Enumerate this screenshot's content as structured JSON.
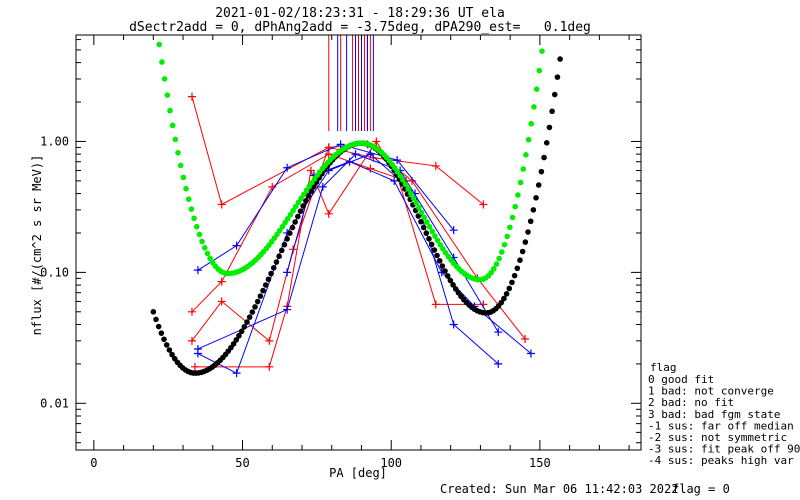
{
  "chart_data": {
    "type": "scatter",
    "title": "2021-01-02/18:23:31 - 18:29:36 UT ela",
    "subtitle": "dSectr2add = 0, dPhAng2add = -3.75deg, dPA290_est=   0.1deg",
    "xlabel": "PA [deg]",
    "ylabel": "nflux [#/(cm^2 s sr MeV)]",
    "xlim": [
      -6,
      184
    ],
    "ylim": [
      0.0044,
      6.5
    ],
    "yscale": "log",
    "x_ticks": [
      0,
      50,
      100,
      150
    ],
    "x_tick_labels": [
      "0",
      "50",
      "100",
      "150"
    ],
    "y_ticks": [
      0.01,
      0.1,
      1.0
    ],
    "y_tick_labels": [
      "0.01",
      "0.10",
      "1.00"
    ],
    "grid": false,
    "legend_position": "right",
    "legend": {
      "title": "flag",
      "entries": [
        " 0 good fit",
        " 1 bad: not converge",
        " 2 bad: no fit",
        " 3 bad: bad fgm state",
        "-1 sus: far off median",
        "-2 sus: not symmetric",
        "-3 sus: fit peak off 90",
        "-4 sus: peaks high var"
      ]
    },
    "vertical_lines": [
      {
        "color": "#ff0000",
        "x": [
          79,
          83,
          87,
          89,
          91,
          92,
          93
        ]
      },
      {
        "color": "#0000ff",
        "x": [
          82,
          85,
          88,
          90,
          92,
          94
        ]
      }
    ],
    "series": [
      {
        "color": "#ff0000",
        "points": [
          [
            33,
            2.2
          ],
          [
            43,
            0.33
          ],
          [
            79,
            0.9
          ],
          [
            94,
            0.75
          ],
          [
            115,
            0.65
          ],
          [
            131,
            0.33
          ]
        ]
      },
      {
        "color": "#ff0000",
        "points": [
          [
            33,
            0.05
          ],
          [
            43,
            0.085
          ],
          [
            60,
            0.45
          ],
          [
            79,
            0.8
          ],
          [
            93,
            0.62
          ],
          [
            105,
            0.5
          ]
        ]
      },
      {
        "color": "#ff0000",
        "points": [
          [
            33,
            0.03
          ],
          [
            43,
            0.06
          ],
          [
            59,
            0.03
          ],
          [
            67,
            0.15
          ],
          [
            79,
            0.9
          ],
          [
            92,
            0.95
          ],
          [
            107,
            0.5
          ],
          [
            129,
            0.09
          ],
          [
            145,
            0.031
          ]
        ]
      },
      {
        "color": "#ff0000",
        "points": [
          [
            34,
            0.019
          ],
          [
            59,
            0.019
          ],
          [
            65,
            0.055
          ],
          [
            73,
            0.6
          ],
          [
            79,
            0.28
          ],
          [
            95,
            1.0
          ],
          [
            102,
            0.55
          ],
          [
            115,
            0.057
          ],
          [
            131,
            0.057
          ]
        ]
      },
      {
        "color": "#0000ff",
        "points": [
          [
            35,
            0.104
          ],
          [
            48,
            0.16
          ],
          [
            65,
            0.63
          ],
          [
            83,
            0.95
          ],
          [
            102,
            0.72
          ],
          [
            121,
            0.21
          ]
        ]
      },
      {
        "color": "#0000ff",
        "points": [
          [
            35,
            0.026
          ],
          [
            65,
            0.052
          ],
          [
            77,
            0.45
          ],
          [
            88,
            0.8
          ],
          [
            103,
            0.6
          ],
          [
            121,
            0.13
          ],
          [
            136,
            0.035
          ]
        ]
      },
      {
        "color": "#0000ff",
        "points": [
          [
            35,
            0.024
          ],
          [
            48,
            0.017
          ],
          [
            65,
            0.2
          ],
          [
            79,
            0.6
          ],
          [
            93,
            0.8
          ],
          [
            108,
            0.4
          ],
          [
            121,
            0.04
          ],
          [
            136,
            0.02
          ]
        ]
      },
      {
        "color": "#0000ff",
        "points": [
          [
            65,
            0.1
          ],
          [
            74,
            0.55
          ],
          [
            86,
            0.7
          ],
          [
            101,
            0.5
          ],
          [
            117,
            0.1
          ],
          [
            128,
            0.055
          ],
          [
            147,
            0.024
          ]
        ]
      }
    ],
    "fits": [
      {
        "color": "#000000",
        "x_range": [
          20,
          157.5
        ],
        "y_at_90": 0.97,
        "y_min": 0.017,
        "x_min": 34,
        "y_edge": 0.05,
        "y_right_min": 0.049,
        "x_right_min": 132,
        "y_right_edge": 5.5
      },
      {
        "color": "#00ee00",
        "x_range": [
          22,
          151
        ],
        "y_at_90": 0.97,
        "y_min": 0.098,
        "x_min": 45,
        "y_edge": 5.5,
        "y_right_min": 0.088,
        "x_right_min": 130,
        "y_right_edge": 5.5
      }
    ]
  },
  "footer": {
    "created": "Created: Sun Mar 06 11:42:03 2022",
    "flag": "flag = 0"
  }
}
